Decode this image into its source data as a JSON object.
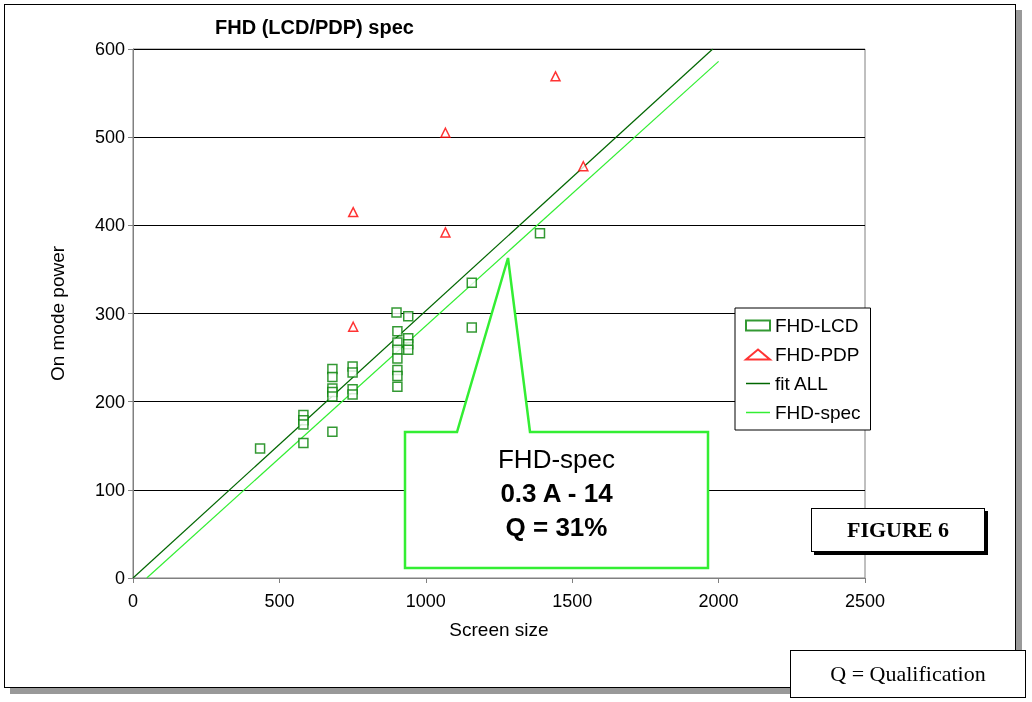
{
  "chart_data": {
    "type": "scatter",
    "title": "FHD (LCD/PDP) spec",
    "xlabel": "Screen size",
    "ylabel": "On mode power",
    "xlim": [
      0,
      2500
    ],
    "xticks": [
      0,
      500,
      1000,
      1500,
      2000,
      2500
    ],
    "ylim": [
      0,
      600
    ],
    "yticks": [
      0,
      100,
      200,
      300,
      400,
      500,
      600
    ],
    "grid": "y",
    "legend": "right",
    "series": [
      {
        "name": "FHD-LCD",
        "marker": "square",
        "color": "#008000",
        "x": [
          900,
          940,
          903,
          940,
          903,
          940,
          903,
          940,
          903,
          903,
          903,
          903,
          1157,
          681,
          681,
          681,
          681,
          681,
          750,
          750,
          750,
          750,
          582,
          582,
          582,
          582,
          681,
          434,
          1157,
          1390
        ],
        "values": [
          301,
          297,
          280,
          272,
          267,
          265,
          259,
          259,
          249,
          236,
          229,
          217,
          284,
          237,
          228,
          215,
          211,
          206,
          240,
          233,
          214,
          208,
          185,
          179,
          174,
          153,
          166,
          147,
          335,
          391
        ]
      },
      {
        "name": "FHD-PDP",
        "marker": "triangle",
        "color": "#ff0000",
        "x": [
          1443,
          1067,
          752,
          1067,
          1538,
          752
        ],
        "values": [
          569,
          505,
          415,
          392,
          467,
          285
        ]
      },
      {
        "name": "fit ALL",
        "type": "line",
        "marker": "none",
        "color": "#006600",
        "x": [
          0,
          1980
        ],
        "values": [
          0,
          600
        ]
      },
      {
        "name": "FHD-spec",
        "type": "line",
        "marker": "none",
        "color": "#33ee33",
        "x": [
          47,
          2000
        ],
        "values": [
          0,
          586
        ]
      }
    ],
    "annotations": [
      "FHD-spec",
      "0.3 A - 14",
      "Q = 31%",
      "FIGURE 6",
      "Q = Qualification"
    ]
  }
}
